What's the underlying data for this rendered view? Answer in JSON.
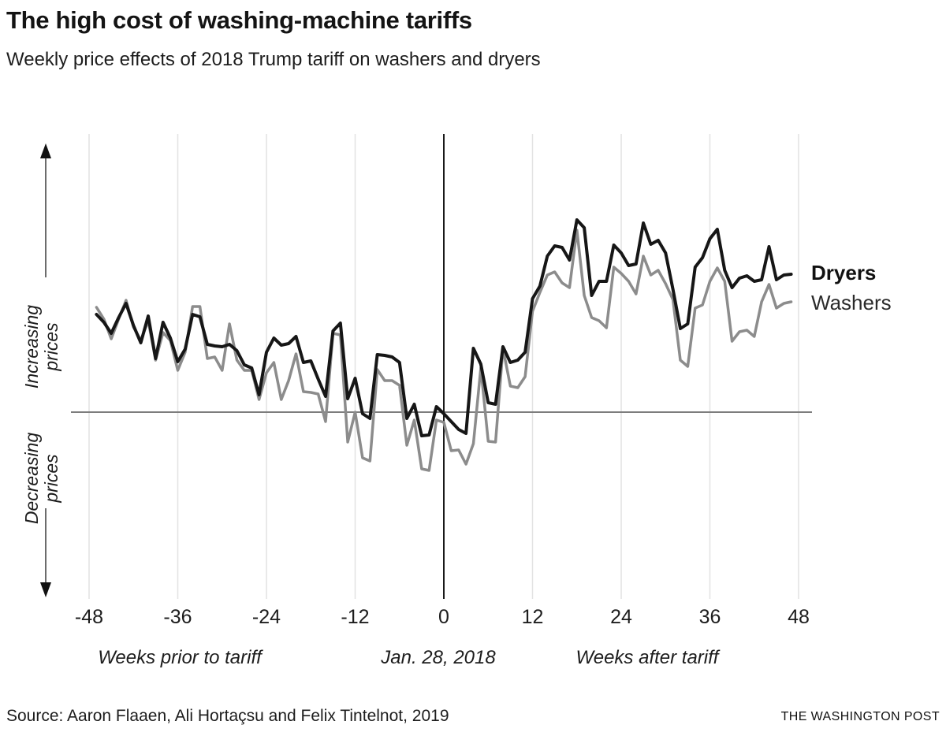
{
  "chart_data": {
    "type": "line",
    "title": "The high cost of washing-machine tariffs",
    "subtitle": "Weekly price effects of 2018 Trump tariff on washers and dryers",
    "x_ticks": [
      "-48",
      "-36",
      "-24",
      "-12",
      "0",
      "12",
      "24",
      "36",
      "48"
    ],
    "x_tick_weeks": [
      -48,
      -36,
      -24,
      -12,
      0,
      12,
      24,
      36,
      48
    ],
    "x_annotations": [
      "Weeks prior to tariff",
      "Jan. 28, 2018",
      "Weeks after tariff"
    ],
    "y_axis_labels": {
      "increasing": [
        "Increasing",
        "prices"
      ],
      "decreasing": [
        "Decreasing",
        "prices"
      ]
    },
    "event_week": 0,
    "xlim": [
      -48,
      48
    ],
    "grid": "vertical-only",
    "legend_position": "right-of-last-point",
    "y_note": "No numeric y-axis shown; values are relative price-index units estimated from the figure (0 = baseline at tariff date).",
    "weeks": [
      -47,
      -46,
      -45,
      -44,
      -43,
      -42,
      -41,
      -40,
      -39,
      -38,
      -37,
      -36,
      -35,
      -34,
      -33,
      -32,
      -31,
      -30,
      -29,
      -28,
      -27,
      -26,
      -25,
      -24,
      -23,
      -22,
      -21,
      -20,
      -19,
      -18,
      -17,
      -16,
      -15,
      -14,
      -13,
      -12,
      -11,
      -10,
      -9,
      -8,
      -7,
      -6,
      -5,
      -4,
      -3,
      -2,
      -1,
      0,
      1,
      2,
      3,
      4,
      5,
      6,
      7,
      8,
      9,
      10,
      11,
      12,
      13,
      14,
      15,
      16,
      17,
      18,
      19,
      20,
      21,
      22,
      23,
      24,
      25,
      26,
      27,
      28,
      29,
      30,
      31,
      32,
      33,
      34,
      35,
      36,
      37,
      38,
      39,
      40,
      41,
      42,
      43,
      44,
      45,
      46,
      47
    ],
    "series": [
      {
        "name": "Dryers",
        "color": "#161616",
        "stroke_width": 4,
        "values": [
          6.2,
          5.7,
          5.0,
          6.0,
          6.9,
          5.5,
          4.4,
          6.1,
          3.4,
          5.7,
          4.7,
          3.2,
          4.0,
          6.2,
          6.05,
          4.3,
          4.2,
          4.15,
          4.3,
          3.9,
          3.0,
          2.8,
          1.1,
          3.8,
          4.7,
          4.25,
          4.35,
          4.8,
          3.15,
          3.25,
          2.1,
          1.0,
          5.15,
          5.65,
          0.85,
          2.15,
          -0.1,
          -0.4,
          3.65,
          3.6,
          3.5,
          3.15,
          -0.4,
          0.5,
          -1.5,
          -1.45,
          0.35,
          -0.1,
          -0.6,
          -1.1,
          -1.35,
          4.05,
          3.05,
          0.6,
          0.5,
          4.15,
          3.15,
          3.3,
          3.8,
          7.2,
          8.0,
          9.9,
          10.55,
          10.45,
          9.65,
          12.2,
          11.7,
          7.4,
          8.3,
          8.3,
          10.6,
          10.1,
          9.3,
          9.4,
          12.0,
          10.65,
          10.9,
          10.1,
          7.8,
          5.3,
          5.6,
          9.2,
          9.8,
          11.0,
          11.6,
          9.0,
          7.9,
          8.5,
          8.65,
          8.3,
          8.4,
          10.5,
          8.4,
          8.7,
          8.75
        ]
      },
      {
        "name": "Washers",
        "color": "#8c8c8c",
        "stroke_width": 3.5,
        "values": [
          6.65,
          5.9,
          4.65,
          5.9,
          7.1,
          5.4,
          4.55,
          5.8,
          3.3,
          5.05,
          4.55,
          2.65,
          3.8,
          6.7,
          6.7,
          3.4,
          3.5,
          2.65,
          5.6,
          3.3,
          2.65,
          2.65,
          0.8,
          2.5,
          3.15,
          0.8,
          2.0,
          3.7,
          1.3,
          1.25,
          1.15,
          -0.6,
          5.0,
          4.9,
          -1.9,
          0.0,
          -2.9,
          -3.1,
          2.7,
          2.0,
          2.0,
          1.7,
          -2.1,
          -0.5,
          -3.6,
          -3.7,
          -0.5,
          -0.65,
          -2.45,
          -2.4,
          -3.3,
          -2.0,
          2.8,
          -1.85,
          -1.9,
          4.05,
          1.65,
          1.55,
          2.25,
          6.4,
          7.6,
          8.7,
          8.9,
          8.2,
          7.9,
          11.55,
          7.4,
          6.0,
          5.8,
          5.35,
          9.2,
          8.8,
          8.3,
          7.5,
          9.9,
          8.7,
          9.0,
          8.15,
          7.15,
          3.3,
          2.9,
          6.6,
          6.8,
          8.3,
          9.15,
          8.3,
          4.5,
          5.1,
          5.2,
          4.8,
          7.0,
          8.1,
          6.6,
          6.9,
          7.0
        ]
      }
    ]
  },
  "footer": {
    "source": "Source: Aaron Flaaen, Ali Hortaçsu and Felix Tintelnot, 2019",
    "credit": "THE WASHINGTON POST"
  }
}
